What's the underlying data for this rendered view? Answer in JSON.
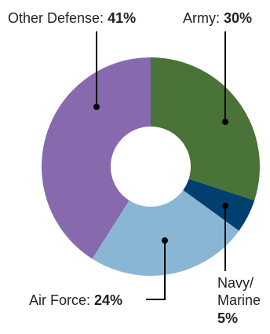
{
  "chart_data": {
    "type": "pie",
    "donut": true,
    "title": "",
    "series": [
      {
        "name": "Army",
        "value": 30,
        "value_label": "30%",
        "color": "#4a7337"
      },
      {
        "name": "Navy/ Marine",
        "value": 5,
        "value_label": "5%",
        "color": "#003f6e"
      },
      {
        "name": "Air Force",
        "value": 24,
        "value_label": "24%",
        "color": "#8ab6d6"
      },
      {
        "name": "Other Defense",
        "value": 41,
        "value_label": "41%",
        "color": "#866aad"
      }
    ],
    "labels": {
      "army": {
        "name": "Army:",
        "value": "30%"
      },
      "navy": {
        "line1": "Navy/",
        "line2": "Marine",
        "value": "5%"
      },
      "air_force": {
        "name": "Air Force:",
        "value": "24%"
      },
      "other_defense": {
        "name": "Other Defense:",
        "value": "41%"
      }
    }
  }
}
